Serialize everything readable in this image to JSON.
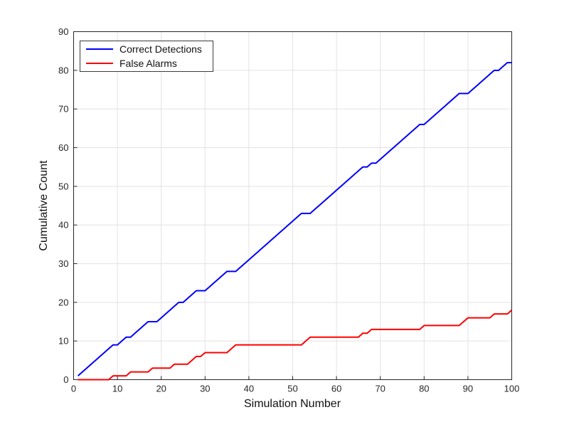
{
  "figure": {
    "background": "#ffffff"
  },
  "chart_data": {
    "type": "line",
    "title": "",
    "xlabel": "Simulation Number",
    "ylabel": "Cumulative Count",
    "xlim": [
      0,
      100
    ],
    "ylim": [
      0,
      90
    ],
    "x_ticks": [
      0,
      10,
      20,
      30,
      40,
      50,
      60,
      70,
      80,
      90,
      100
    ],
    "y_ticks": [
      0,
      10,
      20,
      30,
      40,
      50,
      60,
      70,
      80,
      90
    ],
    "grid": true,
    "legend_position": "top-left",
    "colors": {
      "grid": "#e3e3e3",
      "axis_box": "#262626",
      "tick": "#262626"
    },
    "x": [
      1,
      2,
      3,
      4,
      5,
      6,
      7,
      8,
      9,
      10,
      11,
      12,
      13,
      14,
      15,
      16,
      17,
      18,
      19,
      20,
      21,
      22,
      23,
      24,
      25,
      26,
      27,
      28,
      29,
      30,
      31,
      32,
      33,
      34,
      35,
      36,
      37,
      38,
      39,
      40,
      41,
      42,
      43,
      44,
      45,
      46,
      47,
      48,
      49,
      50,
      51,
      52,
      53,
      54,
      55,
      56,
      57,
      58,
      59,
      60,
      61,
      62,
      63,
      64,
      65,
      66,
      67,
      68,
      69,
      70,
      71,
      72,
      73,
      74,
      75,
      76,
      77,
      78,
      79,
      80,
      81,
      82,
      83,
      84,
      85,
      86,
      87,
      88,
      89,
      90,
      91,
      92,
      93,
      94,
      95,
      96,
      97,
      98,
      99,
      100
    ],
    "series": [
      {
        "name": "Correct Detections",
        "color": "#0000ff",
        "line_width": 2,
        "values": [
          1,
          2,
          3,
          4,
          5,
          6,
          7,
          8,
          9,
          9,
          10,
          11,
          11,
          12,
          13,
          14,
          15,
          15,
          15,
          16,
          17,
          18,
          19,
          20,
          20,
          21,
          22,
          23,
          23,
          23,
          24,
          25,
          26,
          27,
          28,
          28,
          28,
          29,
          30,
          31,
          32,
          33,
          34,
          35,
          36,
          37,
          38,
          39,
          40,
          41,
          42,
          43,
          43,
          43,
          44,
          45,
          46,
          47,
          48,
          49,
          50,
          51,
          52,
          53,
          54,
          55,
          55,
          56,
          56,
          57,
          58,
          59,
          60,
          61,
          62,
          63,
          64,
          65,
          66,
          66,
          67,
          68,
          69,
          70,
          71,
          72,
          73,
          74,
          74,
          74,
          75,
          76,
          77,
          78,
          79,
          80,
          80,
          81,
          82,
          82
        ]
      },
      {
        "name": "False Alarms",
        "color": "#ff0000",
        "line_width": 2,
        "values": [
          0,
          0,
          0,
          0,
          0,
          0,
          0,
          0,
          1,
          1,
          1,
          1,
          2,
          2,
          2,
          2,
          2,
          3,
          3,
          3,
          3,
          3,
          4,
          4,
          4,
          4,
          5,
          6,
          6,
          7,
          7,
          7,
          7,
          7,
          7,
          8,
          9,
          9,
          9,
          9,
          9,
          9,
          9,
          9,
          9,
          9,
          9,
          9,
          9,
          9,
          9,
          9,
          10,
          11,
          11,
          11,
          11,
          11,
          11,
          11,
          11,
          11,
          11,
          11,
          11,
          12,
          12,
          13,
          13,
          13,
          13,
          13,
          13,
          13,
          13,
          13,
          13,
          13,
          13,
          14,
          14,
          14,
          14,
          14,
          14,
          14,
          14,
          14,
          15,
          16,
          16,
          16,
          16,
          16,
          16,
          17,
          17,
          17,
          17,
          18
        ]
      }
    ]
  }
}
